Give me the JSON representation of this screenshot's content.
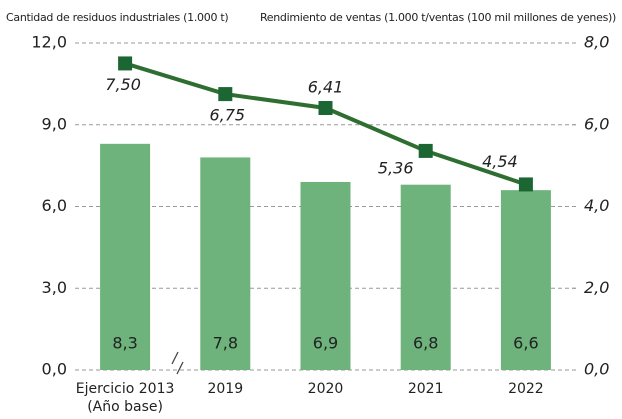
{
  "chart_data": {
    "type": "bar",
    "y_label": "Cantidad de residuos industriales (1.000 t)",
    "y2_label": "Rendimiento de ventas (1.000 t/ventas (100 mil millones de yenes))",
    "categories": [
      "Ejercicio 2013\n(Año base)",
      "2019",
      "2020",
      "2021",
      "2022"
    ],
    "series": [
      {
        "type": "bar",
        "color": "#6db37b",
        "values": [
          8.3,
          7.8,
          6.9,
          6.8,
          6.6
        ],
        "value_labels": [
          "8,3",
          "7,8",
          "6,9",
          "6,8",
          "6,6"
        ]
      },
      {
        "type": "line",
        "axis": "y2",
        "color": "#2f6e31",
        "marker_color": "#1b6633",
        "values": [
          7.5,
          6.75,
          6.41,
          5.36,
          4.54
        ],
        "value_labels": [
          "7,50",
          "6,75",
          "6,41",
          "5,36",
          "4,54"
        ]
      }
    ],
    "ylim": [
      0,
      12
    ],
    "yticks": [
      {
        "value": 0,
        "label": "0,0"
      },
      {
        "value": 3,
        "label": "3,0"
      },
      {
        "value": 6,
        "label": "6,0"
      },
      {
        "value": 9,
        "label": "9,0"
      },
      {
        "value": 12,
        "label": "12,0"
      }
    ],
    "y2lim": [
      0,
      8
    ],
    "y2ticks": [
      {
        "value": 0,
        "label": "0,0"
      },
      {
        "value": 2,
        "label": "2,0"
      },
      {
        "value": 4,
        "label": "4,0"
      },
      {
        "value": 6,
        "label": "6,0"
      },
      {
        "value": 8,
        "label": "8,0"
      }
    ],
    "grid": true
  }
}
